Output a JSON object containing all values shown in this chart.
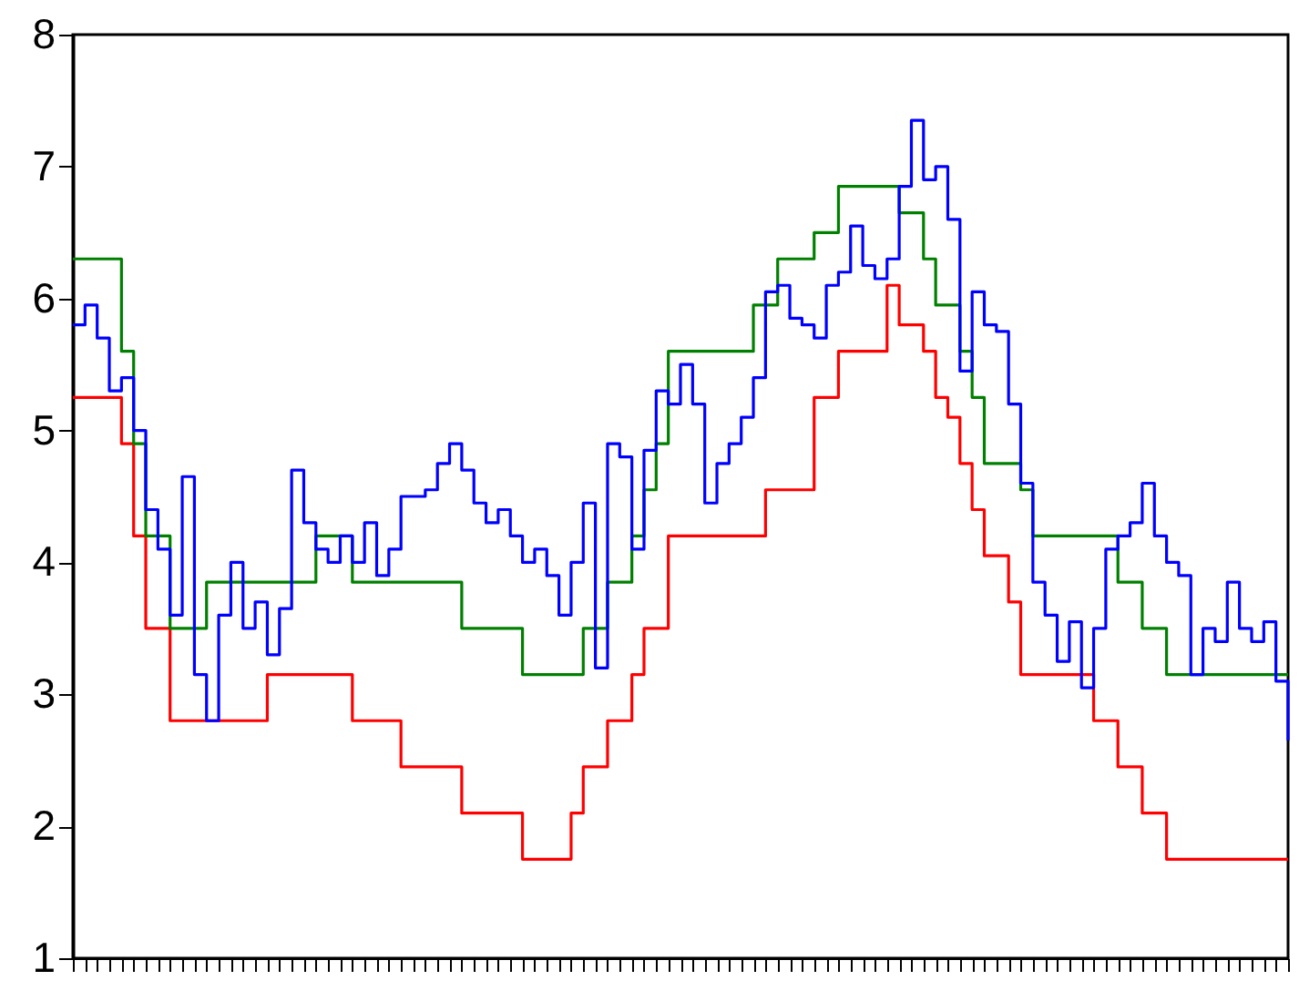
{
  "chart_data": {
    "type": "step",
    "categories": [
      null,
      null,
      null,
      null,
      null,
      null,
      null,
      null,
      null,
      null,
      null,
      null,
      null,
      null,
      null,
      null,
      null,
      null,
      null,
      null,
      null,
      null,
      null,
      null,
      null,
      null,
      null,
      null,
      null,
      null,
      null,
      null,
      null,
      null,
      null,
      null,
      null,
      null,
      null,
      null,
      null,
      null,
      null,
      null,
      null,
      null,
      null,
      null,
      null,
      null,
      null,
      null,
      null,
      null,
      null,
      null,
      null,
      null,
      null,
      null,
      null,
      null,
      null,
      null,
      null,
      null,
      null,
      null,
      null,
      null,
      null,
      null,
      null,
      null,
      null,
      null,
      null,
      null,
      null,
      null,
      null,
      null,
      null,
      null,
      null,
      null,
      null,
      null,
      null,
      null,
      null,
      null,
      null,
      null,
      null,
      null,
      null,
      null,
      null,
      null,
      null
    ],
    "series": [
      {
        "color": "#ff0000",
        "values": [
          5.25,
          5.25,
          5.25,
          5.25,
          4.9,
          4.2,
          3.5,
          3.5,
          2.8,
          2.8,
          2.8,
          2.8,
          2.8,
          2.8,
          2.8,
          2.8,
          3.15,
          3.15,
          3.15,
          3.15,
          3.15,
          3.15,
          3.15,
          2.8,
          2.8,
          2.8,
          2.8,
          2.45,
          2.45,
          2.45,
          2.45,
          2.45,
          2.1,
          2.1,
          2.1,
          2.1,
          2.1,
          1.75,
          1.75,
          1.75,
          1.75,
          2.1,
          2.45,
          2.45,
          2.8,
          2.8,
          3.15,
          3.5,
          3.5,
          4.2,
          4.2,
          4.2,
          4.2,
          4.2,
          4.2,
          4.2,
          4.2,
          4.55,
          4.55,
          4.55,
          4.55,
          5.25,
          5.25,
          5.6,
          5.6,
          5.6,
          5.6,
          6.1,
          5.8,
          5.8,
          5.6,
          5.25,
          5.1,
          4.75,
          4.4,
          4.05,
          4.05,
          3.7,
          3.15,
          3.15,
          3.15,
          3.15,
          3.15,
          3.15,
          2.8,
          2.8,
          2.45,
          2.45,
          2.1,
          2.1,
          1.75,
          1.75,
          1.75,
          1.75,
          1.75,
          1.75,
          1.75,
          1.75,
          1.75,
          1.75,
          1.75
        ]
      },
      {
        "color": "#008000",
        "values": [
          6.3,
          6.3,
          6.3,
          6.3,
          5.6,
          4.9,
          4.2,
          4.2,
          3.5,
          3.5,
          3.5,
          3.85,
          3.85,
          3.85,
          3.85,
          3.85,
          3.85,
          3.85,
          3.85,
          3.85,
          4.2,
          4.2,
          4.2,
          3.85,
          3.85,
          3.85,
          3.85,
          3.85,
          3.85,
          3.85,
          3.85,
          3.85,
          3.5,
          3.5,
          3.5,
          3.5,
          3.5,
          3.15,
          3.15,
          3.15,
          3.15,
          3.15,
          3.5,
          3.5,
          3.85,
          3.85,
          4.2,
          4.55,
          4.9,
          5.6,
          5.6,
          5.6,
          5.6,
          5.6,
          5.6,
          5.6,
          5.95,
          5.95,
          6.3,
          6.3,
          6.3,
          6.5,
          6.5,
          6.85,
          6.85,
          6.85,
          6.85,
          6.85,
          6.65,
          6.65,
          6.3,
          5.95,
          5.95,
          5.6,
          5.25,
          4.75,
          4.75,
          4.75,
          4.55,
          4.2,
          4.2,
          4.2,
          4.2,
          4.2,
          4.2,
          4.2,
          3.85,
          3.85,
          3.5,
          3.5,
          3.15,
          3.15,
          3.15,
          3.15,
          3.15,
          3.15,
          3.15,
          3.15,
          3.15,
          3.15,
          3.15
        ]
      },
      {
        "color": "#0000ff",
        "values": [
          5.8,
          5.95,
          5.7,
          5.3,
          5.4,
          5.0,
          4.4,
          4.1,
          3.6,
          4.65,
          3.15,
          2.8,
          3.6,
          4.0,
          3.5,
          3.7,
          3.3,
          3.65,
          4.7,
          4.3,
          4.1,
          4.0,
          4.2,
          4.0,
          4.3,
          3.9,
          4.1,
          4.5,
          4.5,
          4.55,
          4.75,
          4.9,
          4.7,
          4.45,
          4.3,
          4.4,
          4.2,
          4.0,
          4.1,
          3.9,
          3.6,
          4.0,
          4.45,
          3.2,
          4.9,
          4.8,
          4.1,
          4.85,
          5.3,
          5.2,
          5.5,
          5.2,
          4.45,
          4.75,
          4.9,
          5.1,
          5.4,
          6.05,
          6.1,
          5.85,
          5.8,
          5.7,
          6.1,
          6.2,
          6.55,
          6.25,
          6.15,
          6.3,
          6.85,
          7.35,
          6.9,
          7.0,
          6.6,
          5.45,
          6.05,
          5.8,
          5.75,
          5.2,
          4.6,
          3.85,
          3.6,
          3.25,
          3.55,
          3.05,
          3.5,
          4.1,
          4.2,
          4.3,
          4.6,
          4.2,
          4.0,
          3.9,
          3.15,
          3.5,
          3.4,
          3.85,
          3.5,
          3.4,
          3.55,
          3.1,
          2.65
        ]
      }
    ],
    "ylim": [
      1,
      8
    ],
    "yticks": [
      1,
      2,
      3,
      4,
      5,
      6,
      7,
      8
    ],
    "tick_labels": "y",
    "line_style": "solid",
    "marker": "none"
  }
}
